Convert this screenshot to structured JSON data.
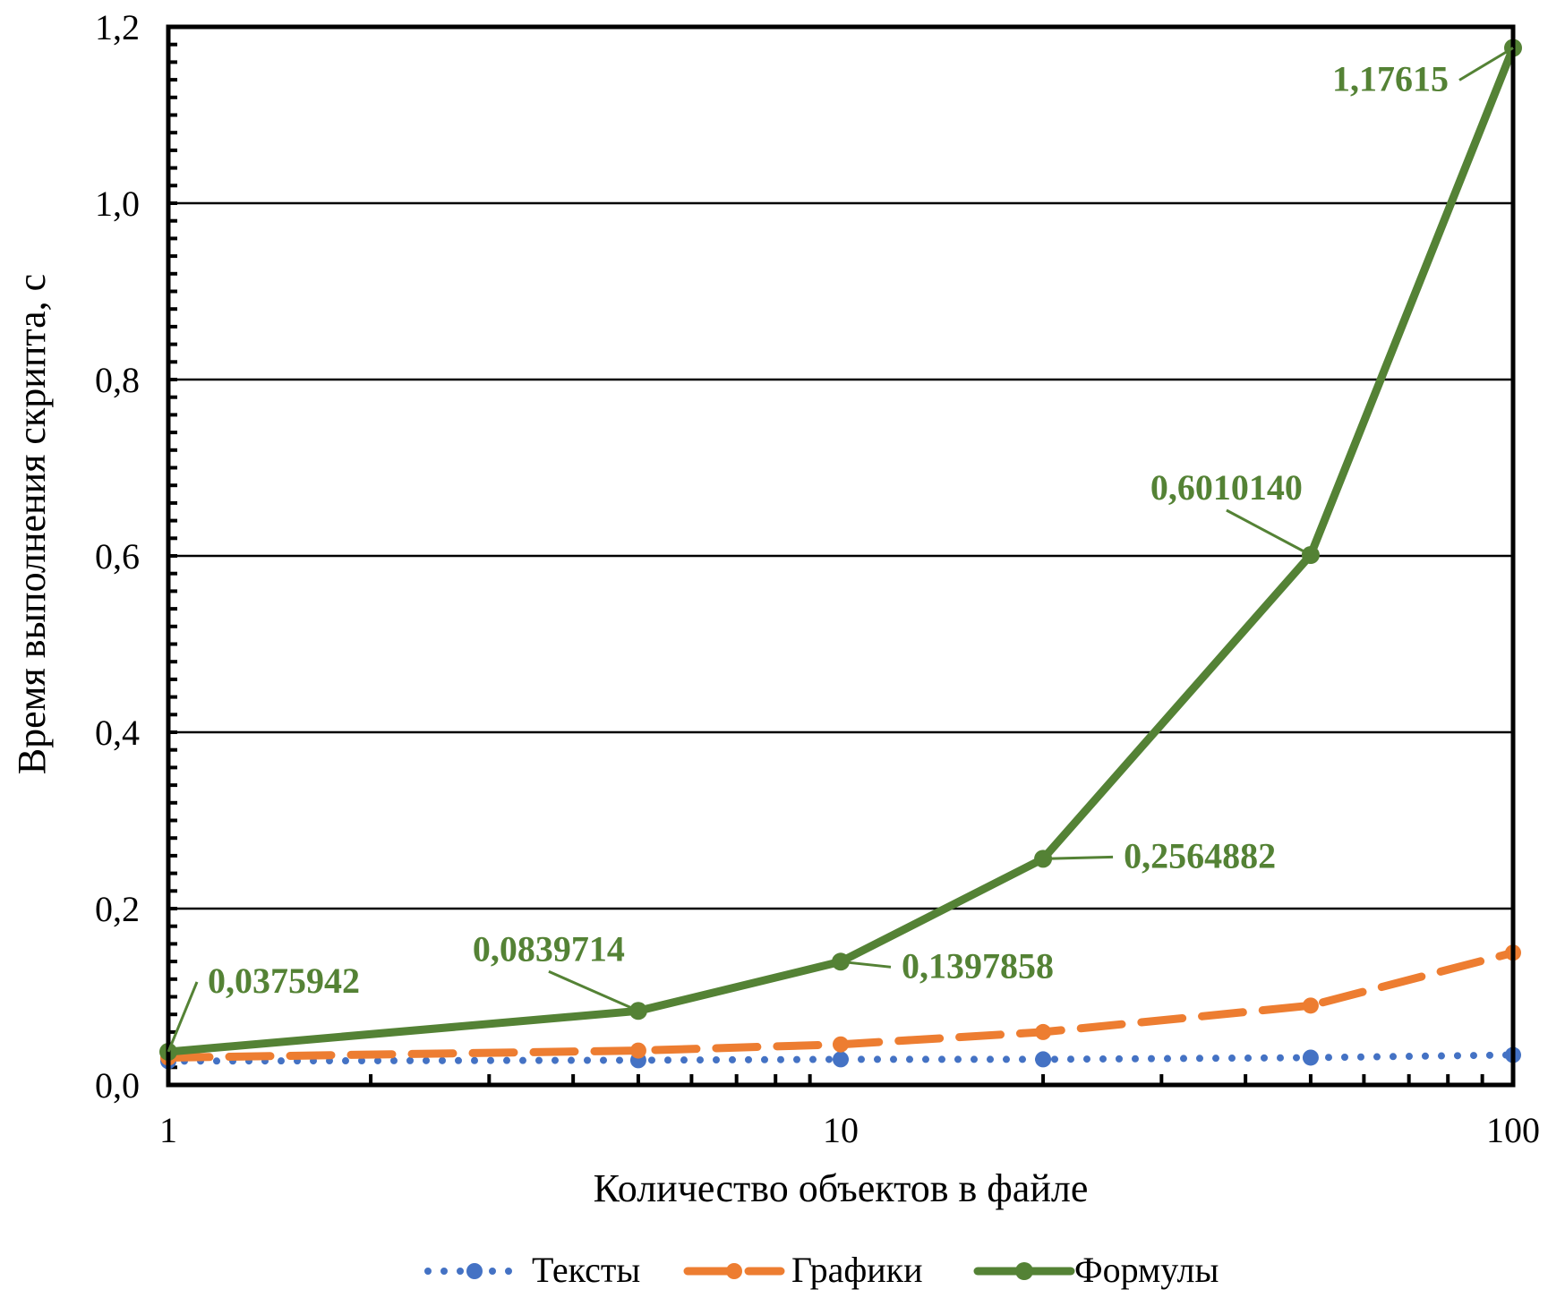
{
  "chart_data": {
    "type": "line",
    "title": "",
    "xlabel": "Количество объектов в файле",
    "ylabel": "Время выполнения скрипта, с",
    "x_scale": "log",
    "xlim": [
      1,
      100
    ],
    "ylim": [
      0,
      1.2
    ],
    "x_ticks": [
      "1",
      "10",
      "100"
    ],
    "y_ticks": [
      "0,0",
      "0,2",
      "0,4",
      "0,6",
      "0,8",
      "1,0",
      "1,2"
    ],
    "grid": "horizontal major",
    "legend": "bottom",
    "x": [
      1,
      5,
      10,
      20,
      50,
      100
    ],
    "series": [
      {
        "name": "Тексты",
        "style": "dotted",
        "color": "#4472C4",
        "values": [
          0.027,
          0.028,
          0.029,
          0.029,
          0.031,
          0.034
        ]
      },
      {
        "name": "Графики",
        "style": "dashed",
        "color": "#ED7D31",
        "values": [
          0.031,
          0.039,
          0.046,
          0.06,
          0.09,
          0.15
        ]
      },
      {
        "name": "Формулы",
        "style": "solid",
        "color": "#548235",
        "values": [
          0.0375942,
          0.0839714,
          0.1397858,
          0.2564882,
          0.601014,
          1.17615
        ],
        "labels": [
          "0,0375942",
          "0,0839714",
          "0,1397858",
          "0,2564882",
          "0,6010140",
          "1,17615"
        ]
      }
    ]
  }
}
